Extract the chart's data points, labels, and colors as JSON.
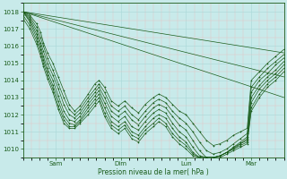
{
  "xlabel": "Pression niveau de la mer( hPa )",
  "background_color": "#c8eaea",
  "major_grid_color": "#a8d8d8",
  "minor_grid_color": "#e8c0c0",
  "line_color": "#1a5c1a",
  "ylim": [
    1009.5,
    1018.5
  ],
  "yticks": [
    1010,
    1011,
    1012,
    1013,
    1014,
    1015,
    1016,
    1017,
    1018
  ],
  "xlim": [
    0,
    192
  ],
  "day_labels": [
    "Sam",
    "Dim",
    "Lun",
    "Mar"
  ],
  "day_positions": [
    24,
    72,
    120,
    168
  ],
  "figsize": [
    3.2,
    2.0
  ],
  "dpi": 100,
  "straight_lines": [
    [
      [
        0,
        192
      ],
      [
        1018.0,
        1015.6
      ]
    ],
    [
      [
        0,
        192
      ],
      [
        1018.0,
        1014.2
      ]
    ],
    [
      [
        0,
        192
      ],
      [
        1018.0,
        1013.0
      ]
    ]
  ],
  "series": [
    {
      "x": [
        0,
        5,
        10,
        13,
        15,
        18,
        22,
        26,
        30,
        34,
        38,
        42,
        48,
        53,
        56,
        60,
        65,
        70,
        75,
        80,
        85,
        90,
        96,
        100,
        105,
        110,
        115,
        120,
        125,
        130,
        135,
        140,
        145,
        150,
        155,
        160,
        165,
        168,
        174,
        180,
        186,
        192
      ],
      "y": [
        1018.0,
        1017.8,
        1017.3,
        1016.8,
        1016.2,
        1015.6,
        1015.0,
        1014.2,
        1013.4,
        1012.6,
        1012.2,
        1012.5,
        1013.2,
        1013.8,
        1014.0,
        1013.6,
        1012.8,
        1012.5,
        1012.8,
        1012.4,
        1012.1,
        1012.6,
        1013.0,
        1013.2,
        1013.0,
        1012.6,
        1012.2,
        1012.0,
        1011.5,
        1011.0,
        1010.5,
        1010.2,
        1010.3,
        1010.5,
        1010.8,
        1011.0,
        1011.2,
        1014.0,
        1014.5,
        1015.0,
        1015.4,
        1015.8
      ],
      "marker": true
    },
    {
      "x": [
        0,
        5,
        10,
        13,
        15,
        18,
        22,
        26,
        30,
        34,
        38,
        42,
        48,
        53,
        56,
        60,
        65,
        70,
        75,
        80,
        85,
        90,
        96,
        100,
        105,
        110,
        115,
        120,
        125,
        130,
        135,
        140,
        145,
        150,
        155,
        160,
        165,
        168,
        174,
        180,
        186,
        192
      ],
      "y": [
        1018.0,
        1017.7,
        1017.1,
        1016.5,
        1016.0,
        1015.3,
        1014.6,
        1013.8,
        1013.0,
        1012.3,
        1012.0,
        1012.3,
        1013.0,
        1013.5,
        1013.8,
        1013.3,
        1012.5,
        1012.2,
        1012.5,
        1012.0,
        1011.7,
        1012.2,
        1012.7,
        1012.9,
        1012.7,
        1012.2,
        1011.8,
        1011.5,
        1011.0,
        1010.4,
        1009.9,
        1009.7,
        1009.8,
        1010.0,
        1010.3,
        1010.6,
        1010.9,
        1013.6,
        1014.2,
        1014.7,
        1015.1,
        1015.5
      ],
      "marker": true
    },
    {
      "x": [
        0,
        5,
        10,
        13,
        15,
        18,
        22,
        26,
        30,
        34,
        38,
        42,
        48,
        53,
        56,
        60,
        65,
        70,
        75,
        80,
        85,
        90,
        96,
        100,
        105,
        110,
        115,
        120,
        125,
        130,
        135,
        140,
        145,
        150,
        155,
        160,
        165,
        168,
        174,
        180,
        186,
        192
      ],
      "y": [
        1018.0,
        1017.6,
        1016.9,
        1016.2,
        1015.7,
        1015.0,
        1014.3,
        1013.5,
        1012.6,
        1012.0,
        1011.8,
        1012.1,
        1012.8,
        1013.3,
        1013.6,
        1013.0,
        1012.2,
        1011.9,
        1012.2,
        1011.7,
        1011.4,
        1011.9,
        1012.4,
        1012.6,
        1012.4,
        1011.9,
        1011.4,
        1011.1,
        1010.5,
        1009.9,
        1009.5,
        1009.5,
        1009.6,
        1009.8,
        1010.1,
        1010.4,
        1010.7,
        1013.3,
        1014.0,
        1014.4,
        1014.9,
        1015.3
      ],
      "marker": true
    },
    {
      "x": [
        0,
        5,
        10,
        13,
        15,
        18,
        22,
        26,
        30,
        34,
        38,
        42,
        48,
        53,
        56,
        60,
        65,
        70,
        75,
        80,
        85,
        90,
        96,
        100,
        105,
        110,
        115,
        120,
        125,
        130,
        135,
        140,
        145,
        150,
        155,
        160,
        165,
        168,
        174,
        180,
        186,
        192
      ],
      "y": [
        1018.0,
        1017.5,
        1016.7,
        1016.0,
        1015.4,
        1014.7,
        1014.0,
        1013.1,
        1012.2,
        1011.7,
        1011.6,
        1011.9,
        1012.6,
        1013.1,
        1013.4,
        1012.7,
        1011.9,
        1011.6,
        1011.9,
        1011.3,
        1011.1,
        1011.6,
        1012.1,
        1012.3,
        1012.1,
        1011.5,
        1011.0,
        1010.7,
        1010.1,
        1009.6,
        1009.5,
        1009.5,
        1009.6,
        1009.8,
        1010.1,
        1010.3,
        1010.6,
        1013.0,
        1013.7,
        1014.2,
        1014.6,
        1015.1
      ],
      "marker": true
    },
    {
      "x": [
        0,
        5,
        10,
        13,
        15,
        18,
        22,
        26,
        30,
        34,
        38,
        42,
        48,
        53,
        56,
        60,
        65,
        70,
        75,
        80,
        85,
        90,
        96,
        100,
        105,
        110,
        115,
        120,
        125,
        130,
        135,
        140,
        145,
        150,
        155,
        160,
        165,
        168,
        174,
        180,
        186,
        192
      ],
      "y": [
        1018.0,
        1017.4,
        1016.5,
        1015.8,
        1015.2,
        1014.5,
        1013.7,
        1012.8,
        1011.9,
        1011.5,
        1011.4,
        1011.7,
        1012.4,
        1012.9,
        1013.2,
        1012.4,
        1011.6,
        1011.3,
        1011.6,
        1011.0,
        1010.8,
        1011.3,
        1011.8,
        1012.0,
        1011.8,
        1011.2,
        1010.7,
        1010.4,
        1009.8,
        1009.5,
        1009.5,
        1009.5,
        1009.6,
        1009.8,
        1010.0,
        1010.3,
        1010.5,
        1012.7,
        1013.5,
        1014.0,
        1014.4,
        1014.9
      ],
      "marker": true
    },
    {
      "x": [
        0,
        5,
        10,
        13,
        15,
        18,
        22,
        26,
        30,
        34,
        38,
        42,
        48,
        53,
        56,
        60,
        65,
        70,
        75,
        80,
        85,
        90,
        96,
        100,
        105,
        110,
        115,
        120,
        125,
        130,
        135,
        140,
        145,
        150,
        155,
        160,
        165,
        168,
        174,
        180,
        186,
        192
      ],
      "y": [
        1017.8,
        1017.2,
        1016.3,
        1015.6,
        1015.0,
        1014.3,
        1013.5,
        1012.5,
        1011.7,
        1011.3,
        1011.3,
        1011.6,
        1012.2,
        1012.7,
        1013.0,
        1012.1,
        1011.4,
        1011.1,
        1011.4,
        1010.8,
        1010.6,
        1011.1,
        1011.5,
        1011.8,
        1011.5,
        1010.9,
        1010.5,
        1010.2,
        1009.7,
        1009.5,
        1009.5,
        1009.5,
        1009.6,
        1009.8,
        1010.0,
        1010.2,
        1010.4,
        1012.4,
        1013.2,
        1013.8,
        1014.2,
        1014.7
      ],
      "marker": true
    },
    {
      "x": [
        0,
        5,
        10,
        13,
        15,
        18,
        22,
        26,
        30,
        34,
        38,
        42,
        48,
        53,
        56,
        60,
        65,
        70,
        75,
        80,
        85,
        90,
        96,
        100,
        105,
        110,
        115,
        120,
        125,
        130,
        135,
        140,
        145,
        150,
        155,
        160,
        165,
        168,
        174,
        180,
        186,
        192
      ],
      "y": [
        1017.6,
        1017.0,
        1016.1,
        1015.4,
        1014.8,
        1014.1,
        1013.3,
        1012.3,
        1011.5,
        1011.2,
        1011.2,
        1011.5,
        1012.0,
        1012.5,
        1012.8,
        1011.9,
        1011.2,
        1010.9,
        1011.2,
        1010.6,
        1010.4,
        1010.9,
        1011.3,
        1011.6,
        1011.3,
        1010.7,
        1010.3,
        1010.0,
        1009.6,
        1009.5,
        1009.5,
        1009.5,
        1009.5,
        1009.7,
        1009.9,
        1010.1,
        1010.3,
        1012.2,
        1013.0,
        1013.6,
        1014.0,
        1014.5
      ],
      "marker": true
    }
  ]
}
